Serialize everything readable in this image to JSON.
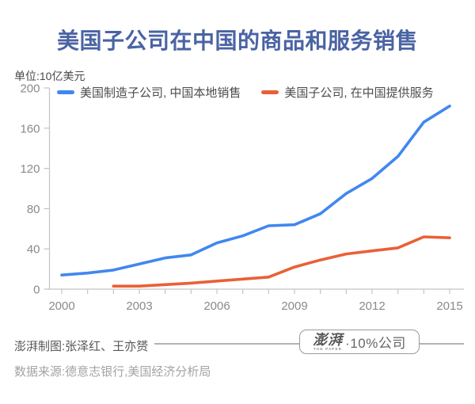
{
  "title": "美国子公司在中国的商品和服务销售",
  "unit_label": "单位:10亿美元",
  "legend": [
    {
      "label": "美国制造子公司, 中国本地销售",
      "color": "#4187ef"
    },
    {
      "label": "美国子公司, 在中国提供服务",
      "color": "#ea6036"
    }
  ],
  "chart_data": {
    "type": "line",
    "title": "美国子公司在中国的商品和服务销售",
    "unit": "10亿美元",
    "xlabel": "",
    "ylabel": "10亿美元",
    "xlim": [
      2000,
      2015
    ],
    "ylim": [
      0,
      200
    ],
    "yticks": [
      0,
      40,
      80,
      120,
      160,
      200
    ],
    "xtick_every": 1,
    "xticks_labeled": [
      2000,
      2003,
      2006,
      2009,
      2012,
      2015
    ],
    "grid": false,
    "legend_position": "top",
    "series": [
      {
        "name": "美国制造子公司, 中国本地销售",
        "color": "#4187ef",
        "start_year": 2000,
        "values": [
          14,
          16,
          19,
          25,
          31,
          34,
          46,
          53,
          63,
          64,
          75,
          95,
          110,
          132,
          166,
          182
        ]
      },
      {
        "name": "美国子公司, 在中国提供服务",
        "color": "#ea6036",
        "start_year": 2002,
        "values": [
          3,
          3,
          4.5,
          6,
          8,
          10,
          12,
          22,
          29,
          35,
          38,
          41,
          52,
          51
        ]
      }
    ]
  },
  "footer": {
    "credit": "澎湃制图:张泽红、王亦赟",
    "source": "数据来源:德意志银行,美国经济分析局",
    "badge": {
      "logo": "澎湃",
      "logo_sub": "THE PAPER",
      "suffix": "·10%公司"
    }
  },
  "colors": {
    "title": "#4a63a3",
    "blue_line": "#4187ef",
    "orange_line": "#ea6036",
    "axis": "#c4c4c4",
    "tick_text": "#8a8a8a",
    "unit_text": "#4a4a4a",
    "legend_text": "#4c4c4c",
    "credit_text": "#585858",
    "source_text": "#a3a3a3",
    "rule": "#b3b3b3",
    "badge_border": "#9a9a9a",
    "badge_text": "#666666"
  }
}
